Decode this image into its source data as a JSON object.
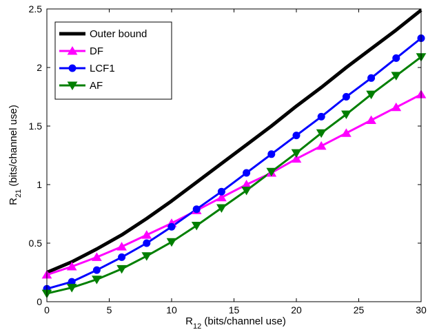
{
  "chart_data": {
    "type": "line",
    "title": "",
    "xlabel": "R",
    "xlabel_sub": "12",
    "xlabel_unit": " (bits/channel use)",
    "ylabel": "R",
    "ylabel_sub": "21",
    "ylabel_unit": " (bits/channel use)",
    "xlim": [
      0,
      30
    ],
    "ylim": [
      0,
      2.5
    ],
    "xticks": [
      0,
      5,
      10,
      15,
      20,
      25,
      30
    ],
    "yticks": [
      0,
      0.5,
      1,
      1.5,
      2,
      2.5
    ],
    "xtick_labels": [
      "0",
      "5",
      "10",
      "15",
      "20",
      "25",
      "30"
    ],
    "ytick_labels": [
      "0",
      "0.5",
      "1",
      "1.5",
      "2",
      "2.5"
    ],
    "grid": false,
    "legend_position": "top-left",
    "x": [
      0,
      2,
      4,
      6,
      8,
      10,
      12,
      14,
      16,
      18,
      20,
      22,
      24,
      26,
      28,
      30
    ],
    "series": [
      {
        "name": "Outer bound",
        "color": "#000000",
        "marker": "none",
        "values": [
          0.25,
          0.34,
          0.45,
          0.57,
          0.71,
          0.86,
          1.02,
          1.18,
          1.34,
          1.5,
          1.67,
          1.83,
          2.0,
          2.16,
          2.32,
          2.49
        ]
      },
      {
        "name": "DF",
        "color": "#ff00ff",
        "marker": "triangle-up",
        "values": [
          0.23,
          0.3,
          0.38,
          0.47,
          0.57,
          0.67,
          0.78,
          0.89,
          1.0,
          1.1,
          1.22,
          1.33,
          1.44,
          1.55,
          1.66,
          1.77
        ]
      },
      {
        "name": "LCF1",
        "color": "#0000ff",
        "marker": "circle",
        "values": [
          0.11,
          0.17,
          0.27,
          0.38,
          0.5,
          0.64,
          0.79,
          0.94,
          1.1,
          1.26,
          1.42,
          1.58,
          1.75,
          1.91,
          2.08,
          2.25
        ]
      },
      {
        "name": "AF",
        "color": "#007f00",
        "marker": "triangle-down",
        "values": [
          0.07,
          0.12,
          0.19,
          0.28,
          0.39,
          0.51,
          0.65,
          0.8,
          0.95,
          1.11,
          1.27,
          1.44,
          1.6,
          1.77,
          1.93,
          2.09
        ]
      }
    ]
  }
}
